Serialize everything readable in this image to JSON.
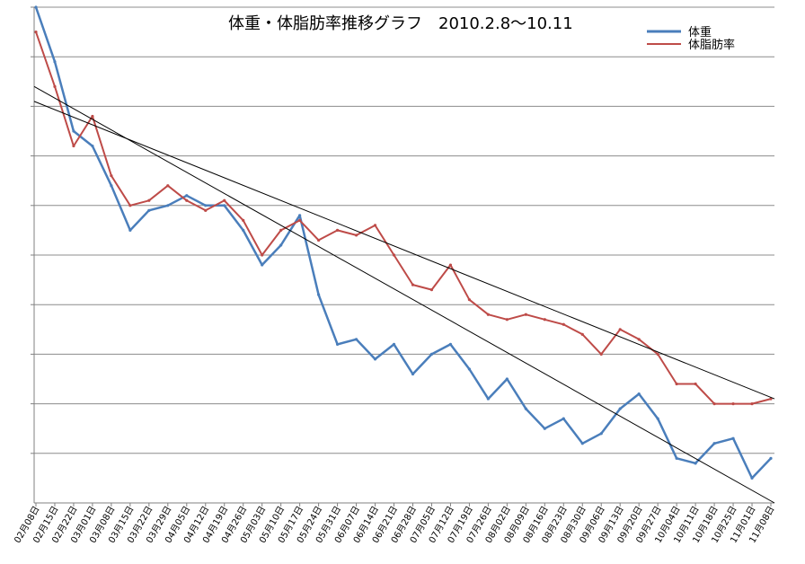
{
  "chart_data": {
    "type": "line",
    "title": "体重・体脂肪率推移グラフ　2010.2.8〜10.11",
    "xlabel": "",
    "ylabel": "",
    "grid": true,
    "legend_position": "top-right",
    "y_tick_labels_visible": false,
    "categories": [
      "02月08日",
      "02月15日",
      "02月22日",
      "03月01日",
      "03月08日",
      "03月15日",
      "03月22日",
      "03月29日",
      "04月05日",
      "04月12日",
      "04月19日",
      "04月26日",
      "05月03日",
      "05月10日",
      "05月17日",
      "05月24日",
      "05月31日",
      "06月07日",
      "06月14日",
      "06月21日",
      "06月28日",
      "07月05日",
      "07月12日",
      "07月19日",
      "07月26日",
      "08月02日",
      "08月09日",
      "08月16日",
      "08月23日",
      "08月30日",
      "09月06日",
      "09月13日",
      "09月20日",
      "09月27日",
      "10月04日",
      "10月11日",
      "10月18日",
      "10月25日",
      "11月01日",
      "11月08日"
    ],
    "series": [
      {
        "name": "体重",
        "color": "#4a7ebb",
        "values": [
          10.0,
          8.9,
          7.5,
          7.2,
          6.4,
          5.5,
          5.9,
          6.0,
          6.2,
          6.0,
          6.0,
          5.5,
          4.8,
          5.2,
          5.8,
          4.2,
          3.2,
          3.3,
          2.9,
          3.2,
          2.6,
          3.0,
          3.2,
          2.7,
          2.1,
          2.5,
          1.9,
          1.5,
          1.7,
          1.2,
          1.4,
          1.9,
          2.2,
          1.7,
          0.9,
          0.8,
          1.2,
          1.3,
          0.5,
          0.9
        ]
      },
      {
        "name": "体脂肪率",
        "color": "#be4b48",
        "values": [
          9.5,
          8.4,
          7.2,
          7.8,
          6.6,
          6.0,
          6.1,
          6.4,
          6.1,
          5.9,
          6.1,
          5.7,
          5.0,
          5.5,
          5.7,
          5.3,
          5.5,
          5.4,
          5.6,
          5.0,
          4.4,
          4.3,
          4.8,
          4.1,
          3.8,
          3.7,
          3.8,
          3.7,
          3.6,
          3.4,
          3.0,
          3.5,
          3.3,
          3.0,
          2.4,
          2.4,
          2.0,
          2.0,
          2.0,
          2.1
        ]
      }
    ],
    "trendlines": [
      {
        "name": "体重 trend",
        "color": "#000000",
        "start": 8.4,
        "end": 0.0
      },
      {
        "name": "体脂肪率 trend",
        "color": "#000000",
        "start": 8.1,
        "end": 2.1
      }
    ],
    "ylim": [
      0,
      10
    ]
  }
}
